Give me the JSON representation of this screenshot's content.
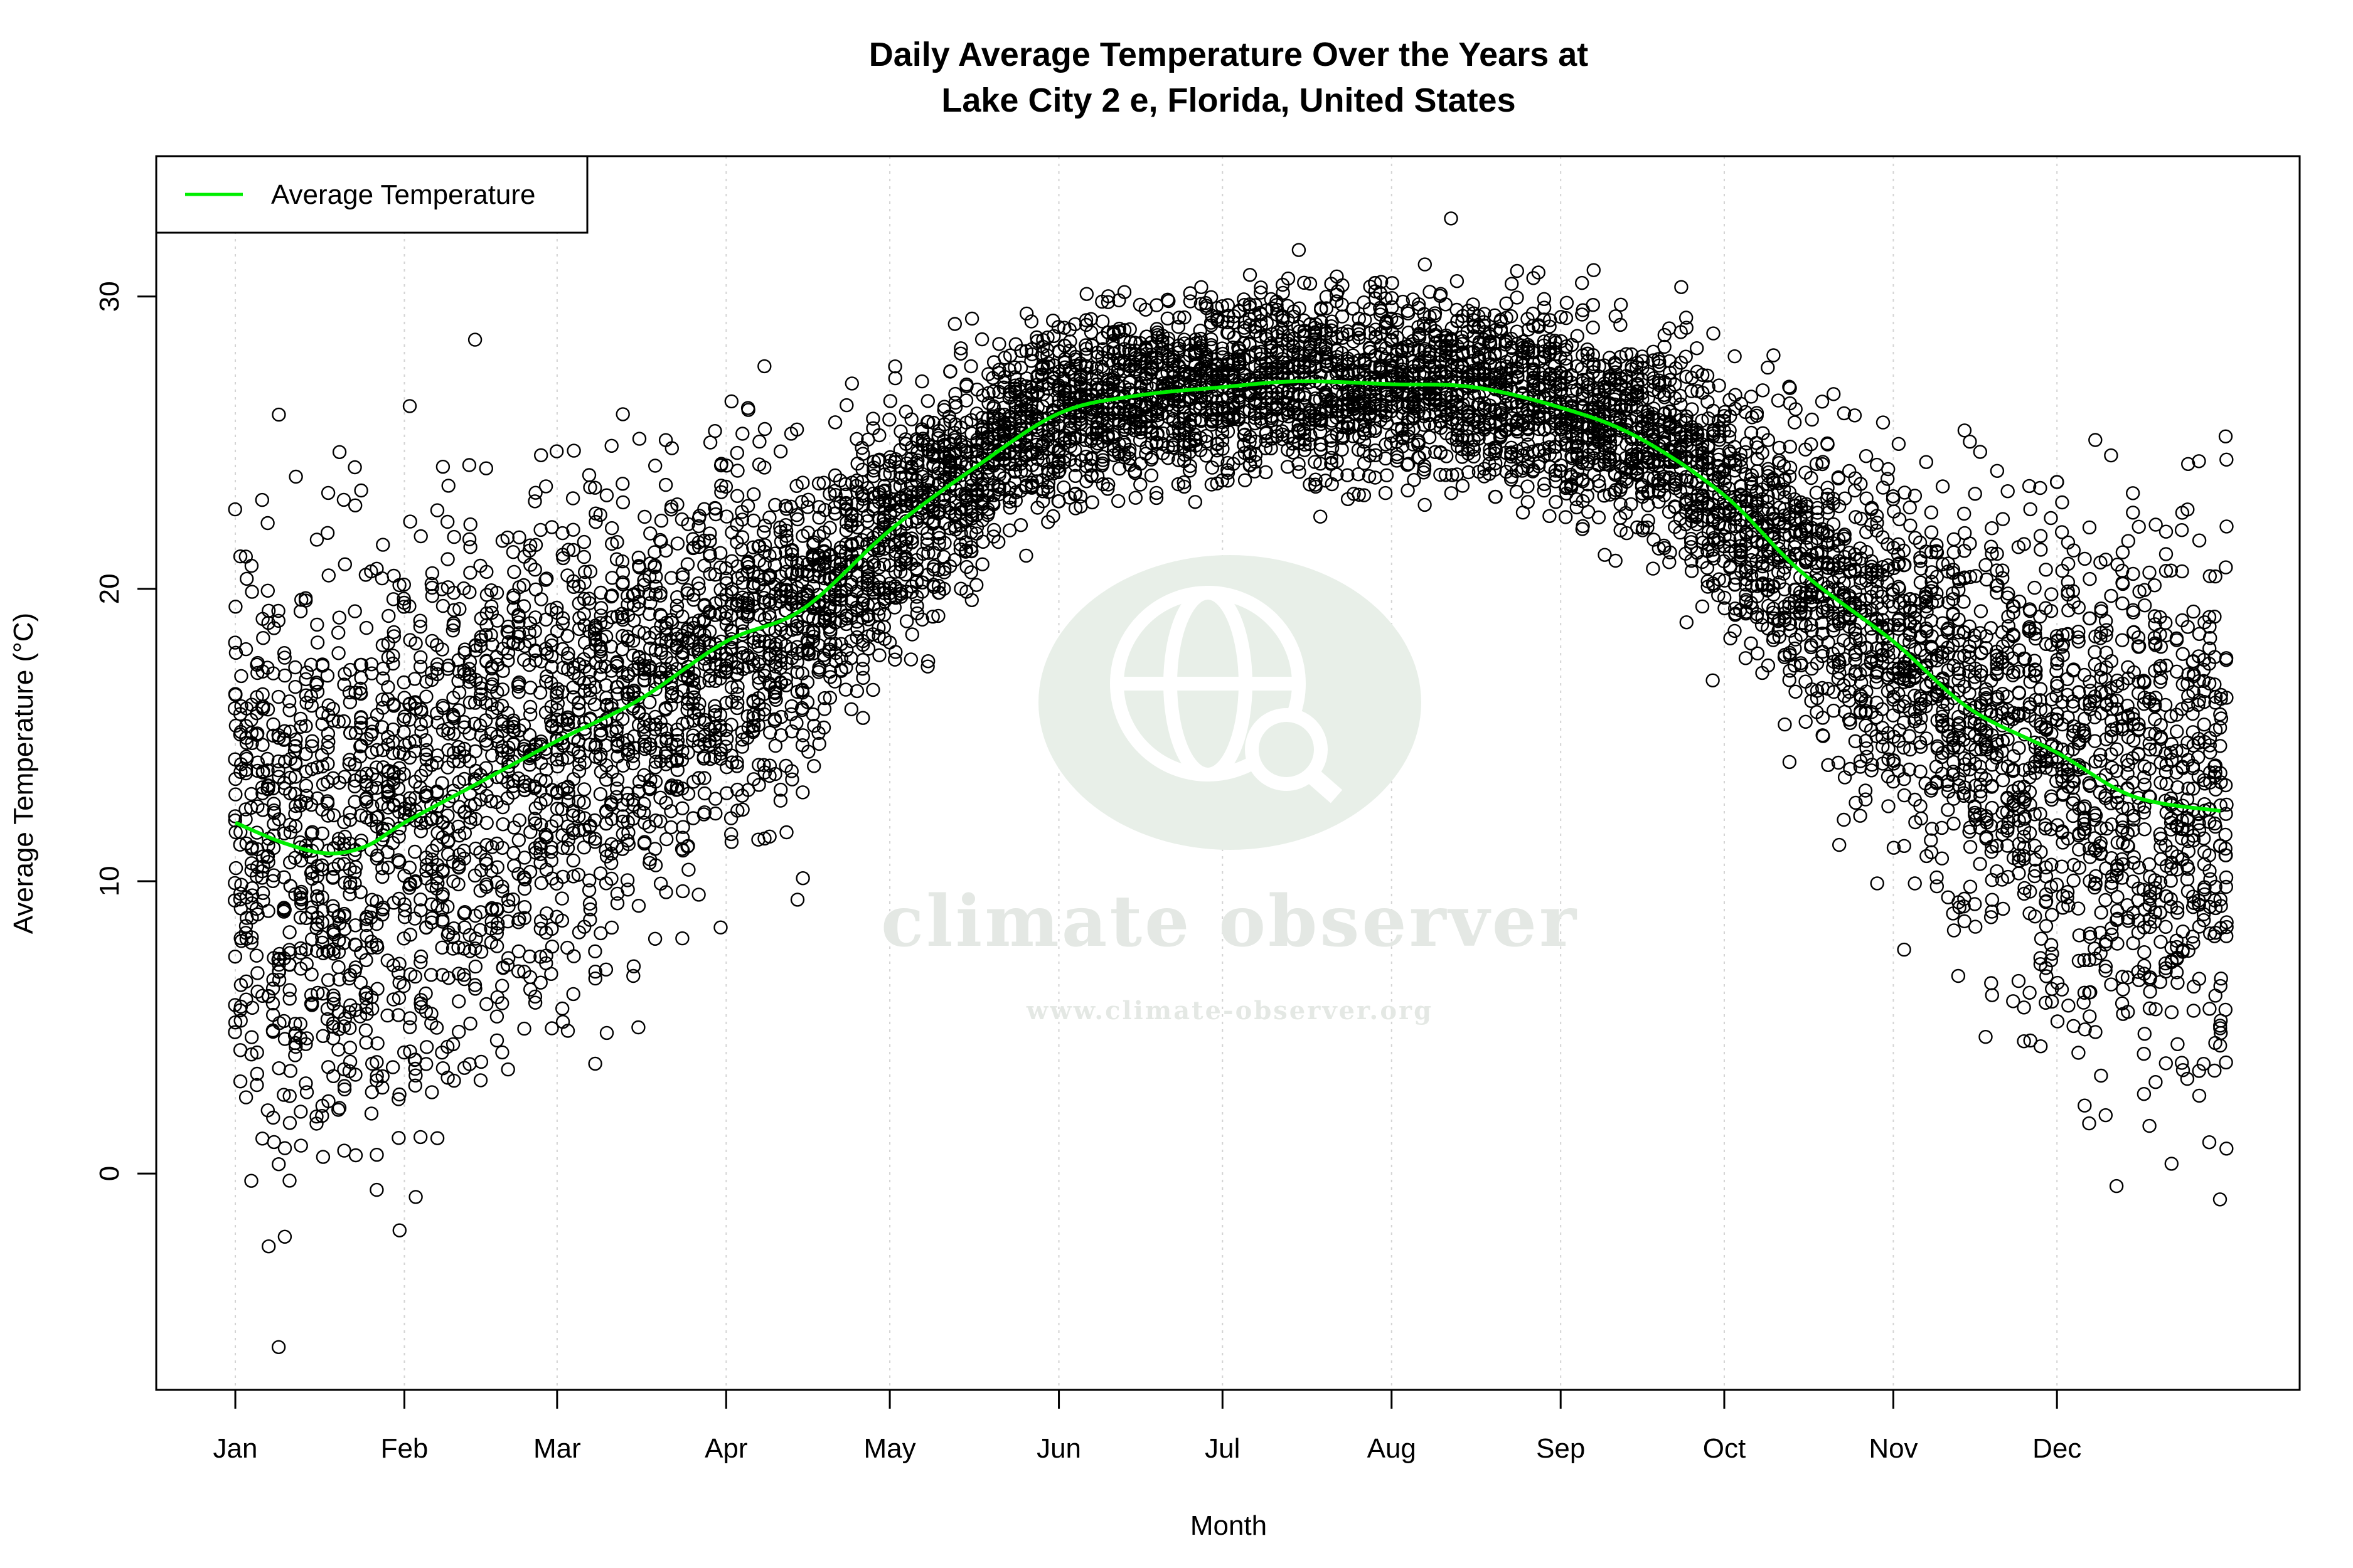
{
  "chart_data": {
    "type": "scatter",
    "title": [
      "Daily Average Temperature Over the Years at",
      "Lake City 2 e, Florida, United States"
    ],
    "xlabel": "Month",
    "ylabel": "Average Temperature (°C)",
    "x_ticks": [
      "Jan",
      "Feb",
      "Mar",
      "Apr",
      "May",
      "Jun",
      "Jul",
      "Aug",
      "Sep",
      "Oct",
      "Nov",
      "Dec"
    ],
    "x_tick_days": [
      1,
      32,
      60,
      91,
      121,
      152,
      182,
      213,
      244,
      274,
      305,
      335
    ],
    "y_ticks": [
      0,
      10,
      20,
      30
    ],
    "xlim": [
      -13.5,
      379.5
    ],
    "ylim": [
      -7.4,
      34.8
    ],
    "grid": "vertical dotted at month ticks",
    "legend": {
      "placement": "top-left",
      "entries": [
        {
          "name": "Average Temperature",
          "color": "#00ee00"
        }
      ]
    },
    "series": [
      {
        "name": "Average Temperature",
        "kind": "smooth line",
        "color": "#00ee00",
        "x": [
          1,
          10,
          18,
          25,
          32,
          45,
          60,
          75,
          91,
          105,
          121,
          137,
          152,
          166,
          182,
          196,
          213,
          228,
          244,
          258,
          274,
          288,
          305,
          319,
          335,
          349,
          365
        ],
        "y": [
          12.0,
          11.3,
          10.95,
          11.2,
          12.0,
          13.3,
          14.8,
          16.2,
          18.2,
          19.3,
          22.0,
          24.2,
          26.0,
          26.6,
          26.9,
          27.1,
          27.0,
          26.9,
          26.2,
          25.2,
          23.2,
          20.6,
          18.2,
          15.9,
          14.4,
          12.9,
          12.4
        ]
      },
      {
        "name": "",
        "kind": "daily observations (open circles)",
        "color": "#000000",
        "x_range": [
          1,
          366
        ],
        "y_range": [
          -6.1,
          33.3
        ]
      }
    ]
  },
  "watermark": {
    "name": "climate observer",
    "url": "www.climate-observer.org",
    "color": "#e6ece6"
  }
}
